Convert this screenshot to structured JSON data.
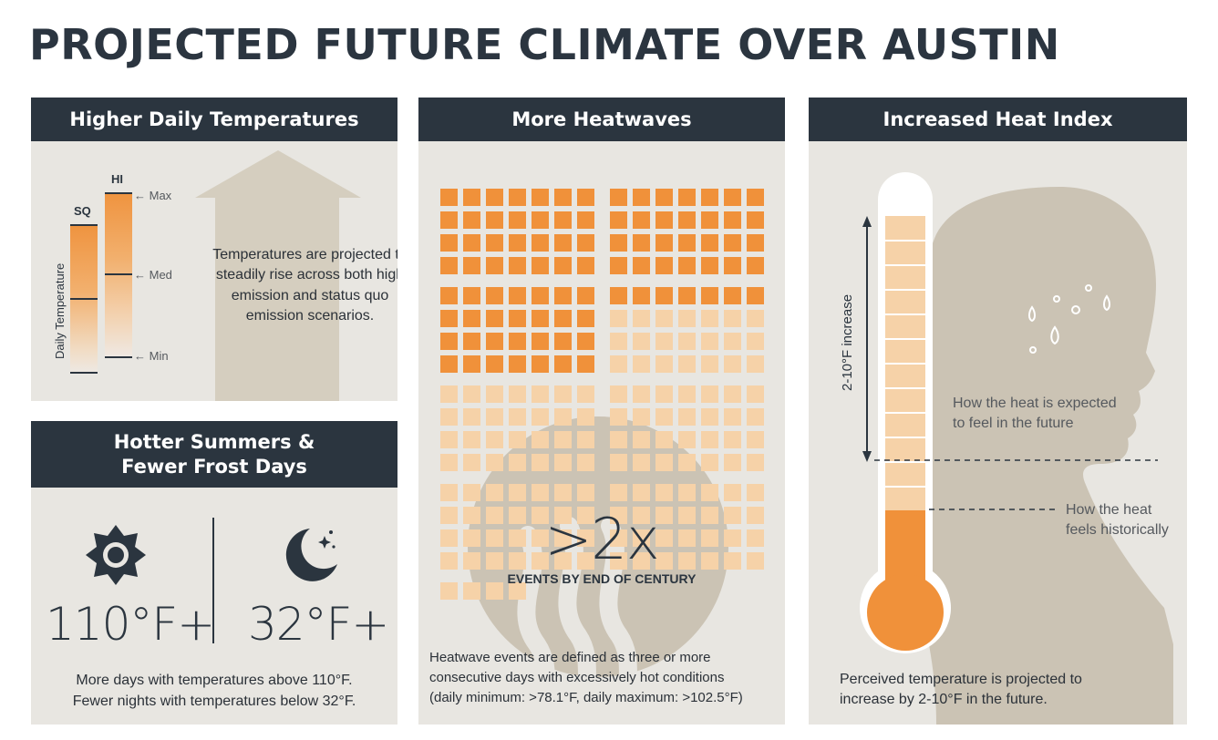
{
  "title": "PROJECTED FUTURE CLIMATE OVER AUSTIN",
  "colors": {
    "header_bg": "#2b353f",
    "panel_bg": "#e8e6e1",
    "accent_orange": "#f0913a",
    "light_orange": "#f6d2a8",
    "silhouette": "#cbc3b4"
  },
  "panels": {
    "daily_temps": {
      "header": "Higher Daily Temperatures",
      "bar_sq_label": "SQ",
      "bar_hi_label": "HI",
      "y_axis_label": "Daily Temperature",
      "tick_max": "← Max",
      "tick_med": "← Med",
      "tick_min": "← Min",
      "description": "Temperatures are projected to steadily rise across both high emission and status quo emission scenarios.",
      "arrow_icon": "up-arrow-icon"
    },
    "summers": {
      "header_line1": "Hotter Summers &",
      "header_line2": "Fewer Frost Days",
      "hot_value": "110°F+",
      "cold_value": "32°F+",
      "line1": "More days with temperatures above 110°F.",
      "line2": "Fewer nights with temperatures below 32°F.",
      "sun_icon": "sun-icon",
      "moon_icon": "moon-stars-icon"
    },
    "heatwaves": {
      "header": "More Heatwaves",
      "big_value": ">2x",
      "big_label": "EVENTS BY END OF CENTURY",
      "note_line1": "Heatwave events are defined as three or more",
      "note_line2": "consecutive days with excessively hot conditions",
      "note_line3": "(daily minimum: >78.1°F, daily maximum: >102.5°F)",
      "grid": {
        "left_total": 116,
        "left_highlighted": 56,
        "right_total": 112,
        "right_highlighted": 35
      }
    },
    "heat_index": {
      "header": "Increased Heat Index",
      "vertical_label": "2-10°F increase",
      "future_line1": "How the heat is expected",
      "future_line2": "to feel in the future",
      "hist_line1": "How the heat",
      "hist_line2": "feels historically",
      "summary_line1": "Perceived temperature is projected to",
      "summary_line2": "increase by 2-10°F in the future."
    }
  }
}
